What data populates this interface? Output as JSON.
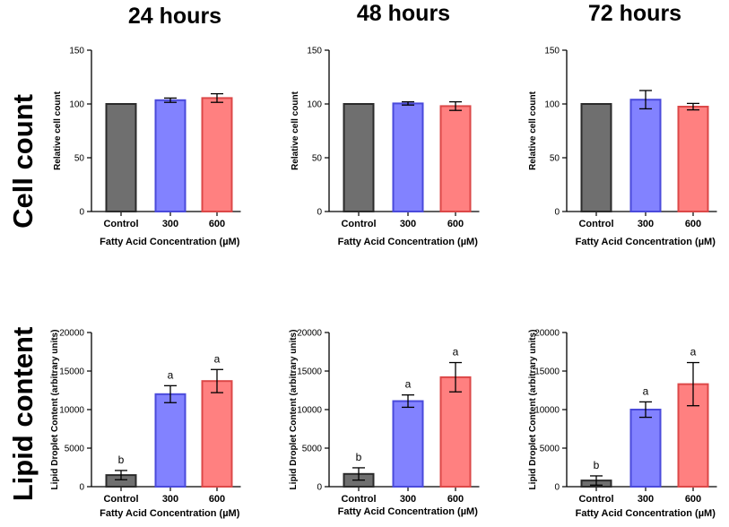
{
  "column_titles": [
    "24 hours",
    "48 hours",
    "72 hours"
  ],
  "row_labels": [
    "Cell count",
    "Lipid content"
  ],
  "colors": {
    "control": "#6f6f6f",
    "control_edge": "#2b2b2b",
    "c300": "#8282ff",
    "c300_edge": "#4a4adb",
    "c600": "#ff8080",
    "c600_edge": "#dc4848"
  },
  "chart_data": [
    {
      "type": "bar",
      "id": "cc24",
      "title": "24 hours",
      "xlabel": "Fatty Acid Concentration (µM)",
      "ylabel": "Relative cell count",
      "categories": [
        "Control",
        "300",
        "600"
      ],
      "values": [
        100,
        103.5,
        105.5
      ],
      "errors": [
        0,
        2,
        4
      ],
      "labels": [
        "",
        "",
        ""
      ],
      "ylim": [
        0,
        150
      ],
      "yticks": [
        0,
        50,
        100,
        150
      ]
    },
    {
      "type": "bar",
      "id": "cc48",
      "title": "48 hours",
      "xlabel": "Fatty Acid Concentration (µM)",
      "ylabel": "Relative cell count",
      "categories": [
        "Control",
        "300",
        "600"
      ],
      "values": [
        100,
        100.5,
        98
      ],
      "errors": [
        0,
        1.5,
        4
      ],
      "labels": [
        "",
        "",
        ""
      ],
      "ylim": [
        0,
        150
      ],
      "yticks": [
        0,
        50,
        100,
        150
      ]
    },
    {
      "type": "bar",
      "id": "cc72",
      "title": "72 hours",
      "xlabel": "Fatty Acid Concentration (µM)",
      "ylabel": "Relative cell count",
      "categories": [
        "Control",
        "300",
        "600"
      ],
      "values": [
        100,
        104,
        97.5
      ],
      "errors": [
        0,
        8.5,
        3
      ],
      "labels": [
        "",
        "",
        ""
      ],
      "ylim": [
        0,
        150
      ],
      "yticks": [
        0,
        50,
        100,
        150
      ]
    },
    {
      "type": "bar",
      "id": "lc24",
      "title": "24 hours",
      "xlabel": "Fatty Acid Concentration (µM)",
      "ylabel": "Lipid Droplet Content (arbitrary units)",
      "categories": [
        "Control",
        "300",
        "600"
      ],
      "values": [
        1500,
        12000,
        13700
      ],
      "errors": [
        600,
        1100,
        1500
      ],
      "labels": [
        "b",
        "a",
        "a"
      ],
      "ylim": [
        0,
        20000
      ],
      "yticks": [
        0,
        5000,
        10000,
        15000,
        20000
      ]
    },
    {
      "type": "bar",
      "id": "lc48",
      "title": "48 hours",
      "xlabel": "Fatty Acid Concentration (µM)",
      "ylabel": "Lipid Droplet Content (arbitrary units)",
      "categories": [
        "Control",
        "300",
        "600"
      ],
      "values": [
        1650,
        11100,
        14200
      ],
      "errors": [
        800,
        800,
        1900
      ],
      "labels": [
        "b",
        "a",
        "a"
      ],
      "ylim": [
        0,
        20000
      ],
      "yticks": [
        0,
        5000,
        10000,
        15000,
        20000
      ]
    },
    {
      "type": "bar",
      "id": "lc72",
      "title": "72 hours",
      "xlabel": "Fatty Acid Concentration (µM)",
      "ylabel": "Lipid Droplet Content (arbitrary units)",
      "categories": [
        "Control",
        "300",
        "600"
      ],
      "values": [
        800,
        10000,
        13300
      ],
      "errors": [
        600,
        1000,
        2800
      ],
      "labels": [
        "b",
        "a",
        "a"
      ],
      "ylim": [
        0,
        20000
      ],
      "yticks": [
        0,
        5000,
        10000,
        15000,
        20000
      ]
    }
  ]
}
